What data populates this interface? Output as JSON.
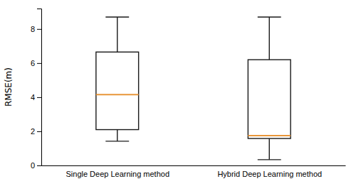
{
  "chart_data": {
    "type": "box",
    "categories": [
      "Single Deep Learning method",
      "Hybrid Deep Learning method"
    ],
    "boxes": [
      {
        "whisker_low": 1.42,
        "q1": 2.1,
        "median": 4.15,
        "q3": 6.65,
        "whisker_high": 8.7
      },
      {
        "whisker_low": 0.339,
        "q1": 1.58,
        "median": 1.75,
        "q3": 6.2,
        "whisker_high": 8.7
      }
    ],
    "ylabel": "RMSE(m)",
    "ylim": [
      0,
      9.2
    ],
    "yticks": [
      0,
      2,
      4,
      6,
      8
    ],
    "color": "#1a1a1a",
    "grid": false
  }
}
